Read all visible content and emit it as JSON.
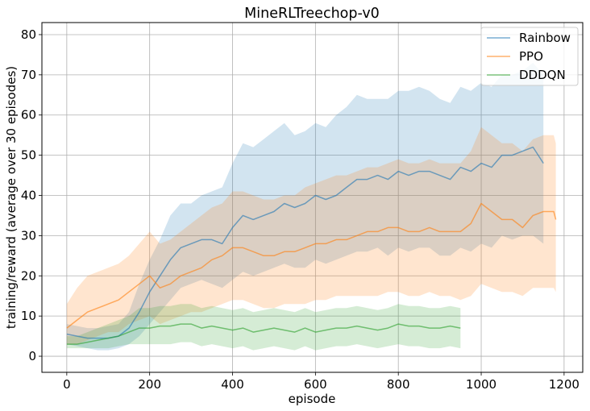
{
  "chart_data": {
    "type": "line",
    "title": "MineRLTreechop-v0",
    "xlabel": "episode",
    "ylabel": "training/reward (average over 30 episodes)",
    "xlim": [
      -60,
      1245
    ],
    "ylim": [
      -4,
      83
    ],
    "xticks": [
      0,
      200,
      400,
      600,
      800,
      1000,
      1200
    ],
    "yticks": [
      0,
      10,
      20,
      30,
      40,
      50,
      60,
      70,
      80
    ],
    "grid": true,
    "legend_position": "top-right",
    "series": [
      {
        "name": "Rainbow",
        "color": "#1f77b4",
        "x": [
          0,
          25,
          50,
          75,
          100,
          125,
          150,
          175,
          200,
          225,
          250,
          275,
          300,
          325,
          350,
          375,
          400,
          425,
          450,
          475,
          500,
          525,
          550,
          575,
          600,
          625,
          650,
          675,
          700,
          725,
          750,
          775,
          800,
          825,
          850,
          875,
          900,
          925,
          950,
          975,
          1000,
          1025,
          1050,
          1075,
          1100,
          1125,
          1150
        ],
        "mean": [
          5.5,
          5,
          4.5,
          4.5,
          4.5,
          5,
          7,
          11,
          16,
          20,
          24,
          27,
          28,
          29,
          29,
          28,
          32,
          35,
          34,
          35,
          36,
          38,
          37,
          38,
          40,
          39,
          40,
          42,
          44,
          44,
          45,
          44,
          46,
          45,
          46,
          46,
          45,
          44,
          47,
          46,
          48,
          47,
          50,
          50,
          51,
          52,
          48
        ],
        "lower": [
          3,
          2.5,
          2,
          1.5,
          1.5,
          2,
          3,
          5,
          8,
          11,
          14,
          17,
          18,
          19,
          18,
          17,
          19,
          21,
          20,
          21,
          22,
          23,
          22,
          22,
          24,
          23,
          24,
          25,
          26,
          26,
          27,
          25,
          27,
          26,
          27,
          27,
          25,
          25,
          27,
          26,
          28,
          27,
          30,
          29,
          30,
          30,
          28
        ],
        "upper": [
          8,
          7.5,
          7,
          7,
          7.5,
          8,
          11,
          18,
          24,
          29,
          35,
          38,
          38,
          40,
          41,
          42,
          48,
          53,
          52,
          54,
          56,
          58,
          55,
          56,
          58,
          57,
          60,
          62,
          65,
          64,
          64,
          64,
          66,
          66,
          67,
          66,
          64,
          63,
          67,
          66,
          68,
          67,
          70,
          70,
          71,
          73,
          70
        ]
      },
      {
        "name": "PPO",
        "color": "#ff7f0e",
        "x": [
          0,
          25,
          50,
          75,
          100,
          125,
          150,
          175,
          200,
          225,
          250,
          275,
          300,
          325,
          350,
          375,
          400,
          425,
          450,
          475,
          500,
          525,
          550,
          575,
          600,
          625,
          650,
          675,
          700,
          725,
          750,
          775,
          800,
          825,
          850,
          875,
          900,
          925,
          950,
          975,
          1000,
          1025,
          1050,
          1075,
          1100,
          1125,
          1150,
          1175,
          1180
        ],
        "mean": [
          7,
          9,
          11,
          12,
          13,
          14,
          16,
          18,
          20,
          17,
          18,
          20,
          21,
          22,
          24,
          25,
          27,
          27,
          26,
          25,
          25,
          26,
          26,
          27,
          28,
          28,
          29,
          29,
          30,
          31,
          31,
          32,
          32,
          31,
          31,
          32,
          31,
          31,
          31,
          33,
          38,
          36,
          34,
          34,
          32,
          35,
          36,
          36,
          34
        ],
        "lower": [
          3,
          3,
          4,
          5,
          6,
          6,
          8,
          9,
          10,
          8,
          9,
          10,
          11,
          11,
          12,
          13,
          14,
          14,
          13,
          12,
          12,
          13,
          13,
          13,
          14,
          14,
          15,
          15,
          15,
          15,
          15,
          16,
          16,
          15,
          15,
          16,
          15,
          15,
          14,
          15,
          18,
          17,
          16,
          16,
          15,
          17,
          17,
          17,
          16
        ],
        "upper": [
          13,
          17,
          20,
          21,
          22,
          23,
          25,
          28,
          31,
          28,
          29,
          31,
          33,
          35,
          37,
          38,
          41,
          41,
          40,
          39,
          39,
          40,
          40,
          42,
          43,
          44,
          45,
          45,
          46,
          47,
          47,
          48,
          49,
          48,
          48,
          49,
          48,
          48,
          48,
          51,
          57,
          55,
          53,
          53,
          51,
          54,
          55,
          55,
          53
        ]
      },
      {
        "name": "DDDQN",
        "color": "#2ca02c",
        "x": [
          0,
          25,
          50,
          75,
          100,
          125,
          150,
          175,
          200,
          225,
          250,
          275,
          300,
          325,
          350,
          375,
          400,
          425,
          450,
          475,
          500,
          525,
          550,
          575,
          600,
          625,
          650,
          675,
          700,
          725,
          750,
          775,
          800,
          825,
          850,
          875,
          900,
          925,
          950
        ],
        "mean": [
          3,
          3,
          3.5,
          4,
          4.5,
          5,
          6,
          7,
          7,
          7.5,
          7.5,
          8,
          8,
          7,
          7.5,
          7,
          6.5,
          7,
          6,
          6.5,
          7,
          6.5,
          6,
          7,
          6,
          6.5,
          7,
          7,
          7.5,
          7,
          6.5,
          7,
          8,
          7.5,
          7.5,
          7,
          7,
          7.5,
          7
        ],
        "lower": [
          2,
          2,
          2,
          2,
          2,
          2.5,
          3,
          3,
          3,
          3,
          3,
          3.5,
          3.5,
          2.5,
          3,
          2.5,
          2,
          2.5,
          1.5,
          2,
          2.5,
          2,
          1.5,
          2.5,
          1.5,
          2,
          2.5,
          2.5,
          3,
          2.5,
          2,
          2.5,
          3,
          2.5,
          2.5,
          2,
          2,
          2.5,
          2
        ],
        "upper": [
          5,
          5,
          6,
          7,
          8,
          9,
          10,
          12,
          12,
          12.5,
          12.5,
          13,
          13,
          12,
          12.5,
          12,
          11.5,
          12,
          11,
          11.5,
          12,
          11.5,
          11,
          12,
          11,
          11.5,
          12,
          12,
          12.5,
          12,
          11.5,
          12,
          13,
          12.5,
          12.5,
          12,
          12,
          12.5,
          12
        ]
      }
    ]
  }
}
